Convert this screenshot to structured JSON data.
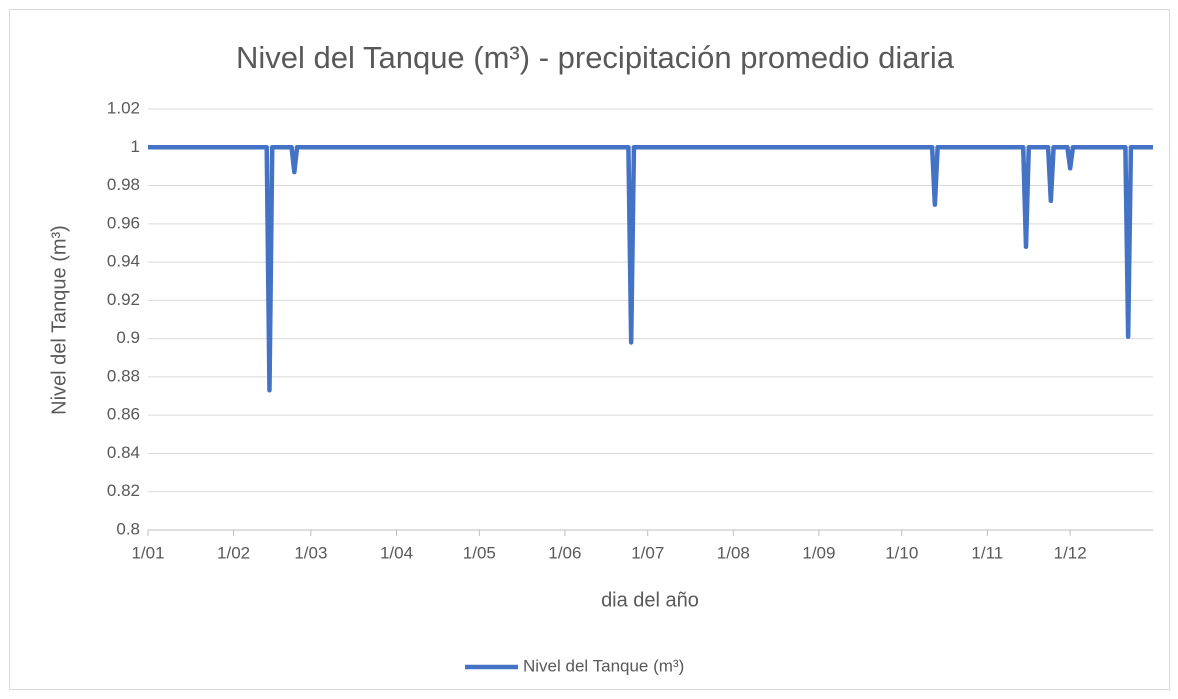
{
  "chart_data": {
    "type": "line",
    "title": "Nivel del Tanque (m³) - precipitación promedio diaria",
    "xlabel": "dia del año",
    "ylabel": "Nivel del Tanque (m³)",
    "x": [
      "1/01",
      "13/02",
      "14/02",
      "15/02",
      "22/02",
      "23/02",
      "24/02",
      "24/06",
      "25/06",
      "26/06",
      "12/10",
      "13/10",
      "14/10",
      "14/11",
      "15/11",
      "16/11",
      "23/11",
      "24/11",
      "25/11",
      "30/11",
      "1/12",
      "2/12",
      "21/12",
      "22/12",
      "23/12",
      "31/12"
    ],
    "series": [
      {
        "name": "Nivel del Tanque (m³)",
        "color": "#4472c4",
        "values": [
          1,
          1,
          0.873,
          1,
          1,
          0.987,
          1,
          1,
          0.898,
          1,
          1,
          0.97,
          1,
          1,
          0.948,
          1,
          1,
          0.972,
          1,
          1,
          0.989,
          1,
          1,
          0.901,
          1,
          1
        ]
      }
    ],
    "xlim": [
      "1/01",
      "31/12"
    ],
    "xticks": [
      "1/01",
      "1/02",
      "1/03",
      "1/04",
      "1/05",
      "1/06",
      "1/07",
      "1/08",
      "1/09",
      "1/10",
      "1/11",
      "1/12"
    ],
    "ylim": [
      0.8,
      1.02
    ],
    "yticks": [
      0.8,
      0.82,
      0.84,
      0.86,
      0.88,
      0.9,
      0.92,
      0.94,
      0.96,
      0.98,
      1,
      1.02
    ],
    "grid": true,
    "legend": "bottom"
  }
}
